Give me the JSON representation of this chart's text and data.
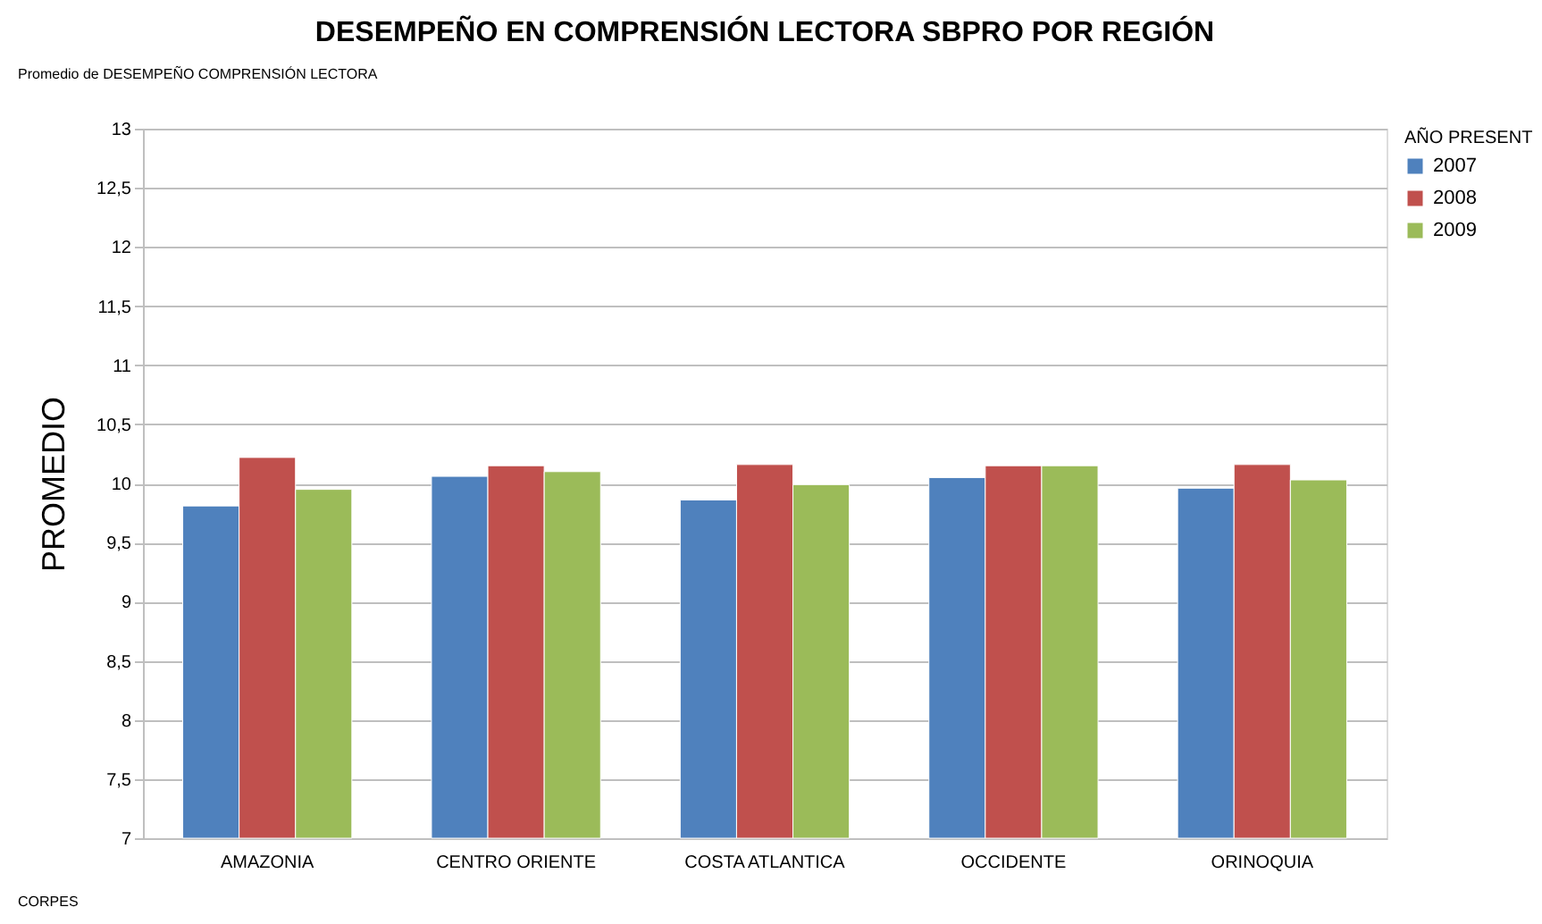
{
  "chart_data": {
    "type": "bar",
    "title": "DESEMPEÑO EN COMPRENSIÓN LECTORA SBPRO  POR REGIÓN",
    "ylabel": "PROMEDIO",
    "legend_title": "AÑO PRESENT",
    "categories": [
      "AMAZONIA",
      "CENTRO ORIENTE",
      "COSTA ATLANTICA",
      "OCCIDENTE",
      "ORINOQUIA"
    ],
    "series": [
      {
        "name": "2007",
        "color": "#4f81bd",
        "values": [
          9.81,
          10.06,
          9.86,
          10.05,
          9.96
        ]
      },
      {
        "name": "2008",
        "color": "#c0504d",
        "values": [
          10.22,
          10.15,
          10.16,
          10.15,
          10.16
        ]
      },
      {
        "name": "2009",
        "color": "#9bbb59",
        "values": [
          9.95,
          10.1,
          9.99,
          10.15,
          10.03
        ]
      }
    ],
    "ylim": [
      7,
      13
    ],
    "yticks": [
      7,
      {
        "value": 7.5,
        "label": "7,5"
      },
      8,
      {
        "value": 8.5,
        "label": "8,5"
      },
      9,
      {
        "value": 9.5,
        "label": "9,5"
      },
      10,
      {
        "value": 10.5,
        "label": "10,5"
      },
      11,
      {
        "value": 11.5,
        "label": "11,5"
      },
      12,
      {
        "value": 12.5,
        "label": "12,5"
      },
      13
    ],
    "grid": "y",
    "legend": "right",
    "annotations": [
      "Promedio de DESEMPEÑO COMPRENSIÓN LECTORA",
      "CORPES"
    ]
  }
}
